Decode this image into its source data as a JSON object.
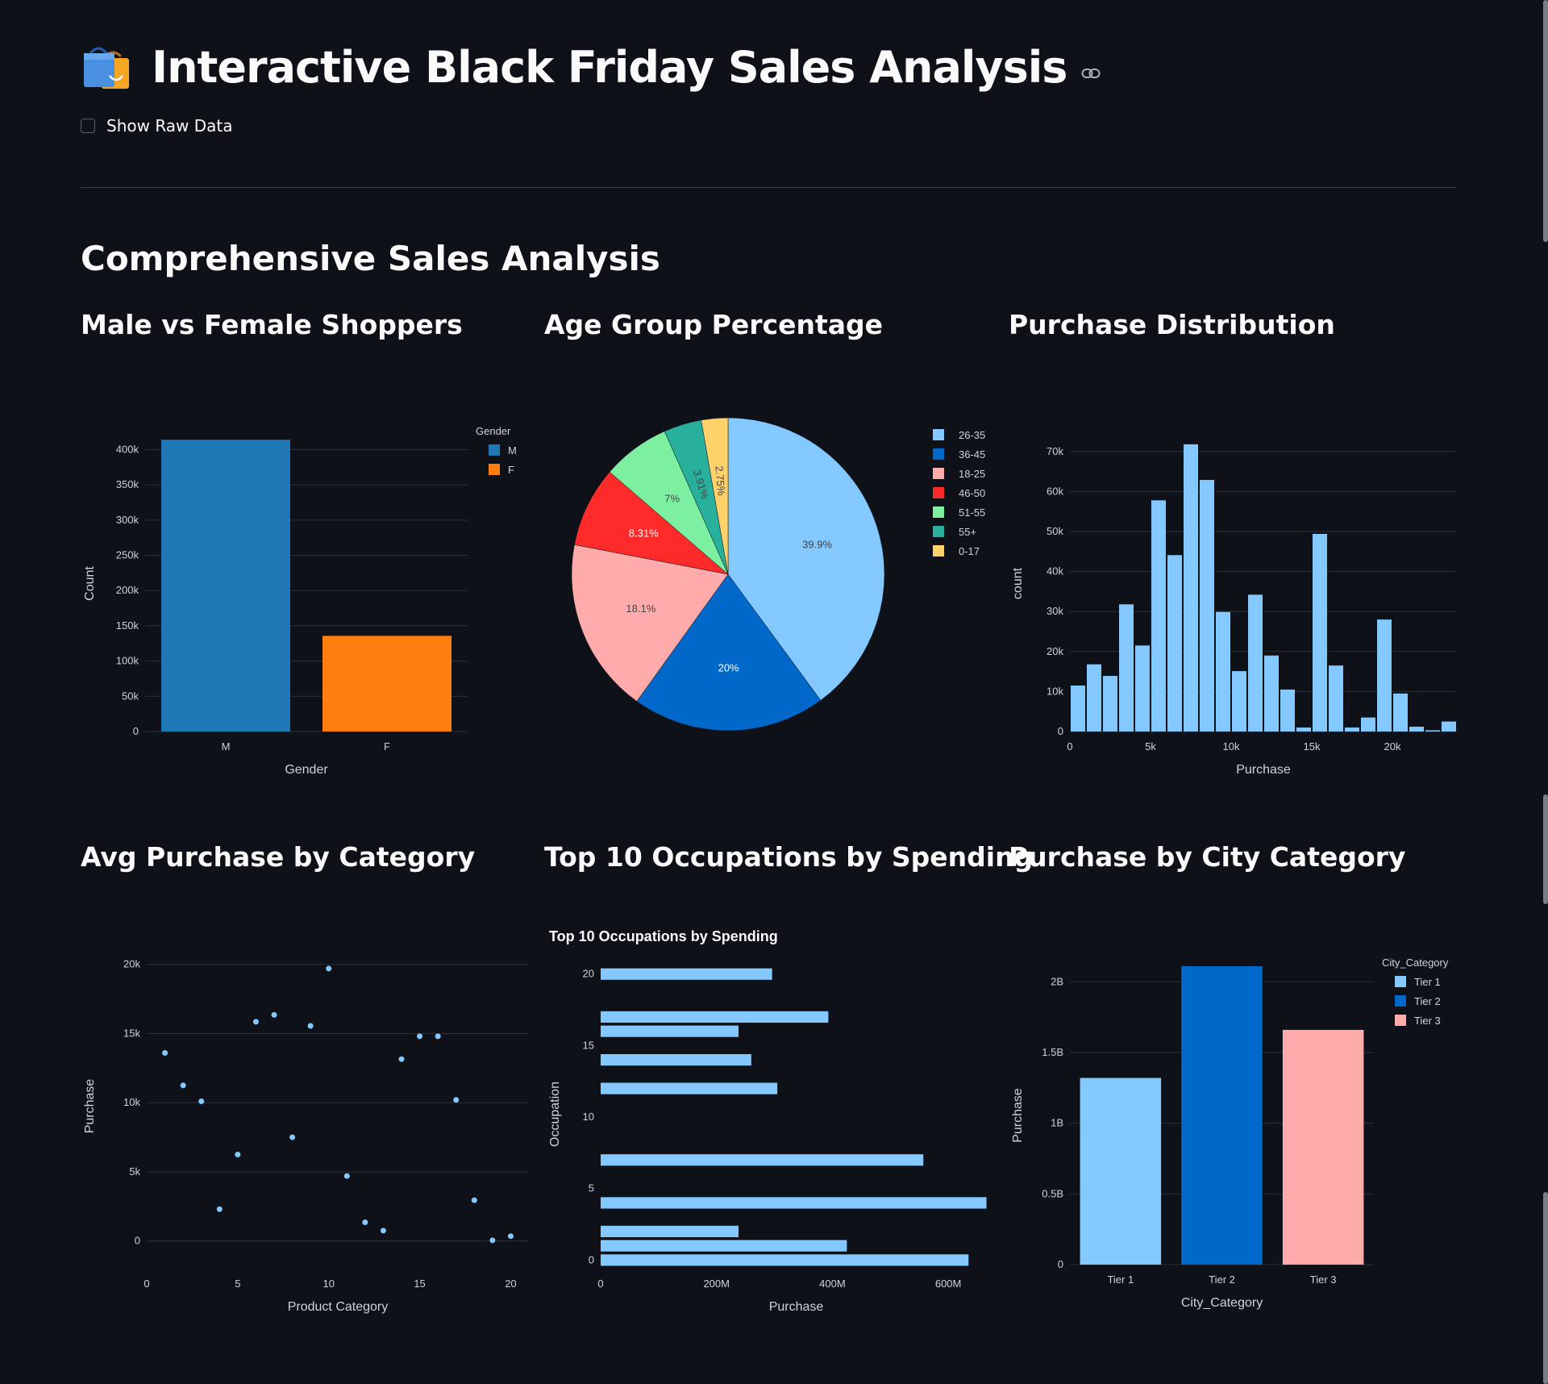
{
  "page": {
    "title": "Interactive Black Friday Sales Analysis",
    "title_icon": "shopping-bags-icon",
    "anchor_icon": "link-icon",
    "show_raw_checkbox": {
      "label": "Show Raw Data",
      "checked": false
    },
    "section_title": "Comprehensive Sales Analysis"
  },
  "colors": {
    "background": "#0e1117",
    "grid": "#2b2f38",
    "text": "#fafafa",
    "axis_text": "#d0d3da",
    "light_blue": "#83c9ff",
    "dark_blue": "#0068c9",
    "pink": "#ffabab",
    "red": "#ff2b2b",
    "green": "#7defa1",
    "teal": "#29b09d",
    "yellow": "#ffd16a",
    "plotly_blue": "#1f77b4",
    "plotly_orange": "#ff7f0e"
  },
  "chart_data": [
    {
      "id": "gender",
      "subheader": "Male vs Female Shoppers",
      "type": "bar",
      "categories": [
        "M",
        "F"
      ],
      "values": [
        414000,
        135800
      ],
      "bar_colors": [
        "#1f77b4",
        "#ff7f0e"
      ],
      "xlabel": "Gender",
      "ylabel": "Count",
      "ylim": [
        0,
        420000
      ],
      "yticks": [
        0,
        50000,
        100000,
        150000,
        200000,
        250000,
        300000,
        350000,
        400000
      ],
      "ytick_labels": [
        "0",
        "50k",
        "100k",
        "150k",
        "200k",
        "250k",
        "300k",
        "350k",
        "400k"
      ],
      "grid": true,
      "legend": {
        "title": "Gender",
        "placement": "top-right",
        "entries": [
          {
            "label": "M",
            "color": "#1f77b4"
          },
          {
            "label": "F",
            "color": "#ff7f0e"
          }
        ]
      }
    },
    {
      "id": "age",
      "subheader": "Age Group Percentage",
      "type": "pie",
      "slices": [
        {
          "label": "26-35",
          "value": 39.9,
          "text": "39.9%",
          "color": "#83c9ff",
          "text_color": "#444444"
        },
        {
          "label": "36-45",
          "value": 20.0,
          "text": "20%",
          "color": "#0068c9",
          "text_color": "#ffffff"
        },
        {
          "label": "18-25",
          "value": 18.1,
          "text": "18.1%",
          "color": "#ffabab",
          "text_color": "#444444"
        },
        {
          "label": "46-50",
          "value": 8.31,
          "text": "8.31%",
          "color": "#ff2b2b",
          "text_color": "#ffffff"
        },
        {
          "label": "51-55",
          "value": 7.0,
          "text": "7%",
          "color": "#7defa1",
          "text_color": "#444444"
        },
        {
          "label": "55+",
          "value": 3.91,
          "text": "3.91%",
          "color": "#29b09d",
          "text_color": "#444444"
        },
        {
          "label": "0-17",
          "value": 2.75,
          "text": "2.75%",
          "color": "#ffd16a",
          "text_color": "#444444"
        }
      ],
      "legend": {
        "placement": "top-right"
      }
    },
    {
      "id": "purchase_hist",
      "subheader": "Purchase Distribution",
      "type": "bar",
      "histogram": true,
      "bin_start": 0,
      "bin_width": 1000,
      "values": [
        11500,
        16800,
        13900,
        31800,
        21500,
        57800,
        44100,
        71800,
        62900,
        29900,
        15100,
        34200,
        19000,
        10500,
        1000,
        49400,
        16500,
        1000,
        3500,
        28000,
        9500,
        1200,
        300,
        2500
      ],
      "color": "#83c9ff",
      "xlabel": "Purchase",
      "ylabel": "count",
      "xlim": [
        0,
        24000
      ],
      "xticks": [
        0,
        5000,
        10000,
        15000,
        20000
      ],
      "xtick_labels": [
        "0",
        "5k",
        "10k",
        "15k",
        "20k"
      ],
      "ylim": [
        0,
        74000
      ],
      "yticks": [
        0,
        10000,
        20000,
        30000,
        40000,
        50000,
        60000,
        70000
      ],
      "ytick_labels": [
        "0",
        "10k",
        "20k",
        "30k",
        "40k",
        "50k",
        "60k",
        "70k"
      ],
      "grid": true
    },
    {
      "id": "category_scatter",
      "subheader": "Avg Purchase by Category",
      "type": "scatter",
      "x": [
        1,
        2,
        3,
        4,
        5,
        6,
        7,
        8,
        9,
        10,
        11,
        12,
        13,
        14,
        15,
        16,
        17,
        18,
        19,
        20
      ],
      "y": [
        13600,
        11250,
        10100,
        2300,
        6250,
        15850,
        16350,
        7500,
        15550,
        19700,
        4700,
        1350,
        750,
        13150,
        14800,
        14800,
        10200,
        2950,
        50,
        350
      ],
      "color": "#83c9ff",
      "xlabel": "Product Category",
      "ylabel": "Purchase",
      "xlim": [
        0,
        21
      ],
      "xticks": [
        0,
        5,
        10,
        15,
        20
      ],
      "xtick_labels": [
        "0",
        "5",
        "10",
        "15",
        "20"
      ],
      "ylim": [
        -2000,
        21500
      ],
      "yticks": [
        0,
        5000,
        10000,
        15000,
        20000
      ],
      "ytick_labels": [
        "0",
        "5k",
        "10k",
        "15k",
        "20k"
      ],
      "grid": true
    },
    {
      "id": "occupation",
      "subheader": "Top 10 Occupations by Spending",
      "title": "Top 10 Occupations by Spending",
      "type": "bar",
      "orientation": "horizontal",
      "categories": [
        0,
        1,
        2,
        4,
        7,
        12,
        14,
        16,
        17,
        20
      ],
      "values": [
        635000000,
        425000000,
        238000000,
        666000000,
        557000000,
        305000000,
        260000000,
        238000000,
        393000000,
        296000000
      ],
      "color": "#83c9ff",
      "xlabel": "Purchase",
      "ylabel": "Occupation",
      "xlim": [
        0,
        675000000
      ],
      "xticks": [
        0,
        200000000,
        400000000,
        600000000
      ],
      "xtick_labels": [
        "0",
        "200M",
        "400M",
        "600M"
      ],
      "ylim": [
        -0.6,
        21
      ],
      "yticks": [
        0,
        5,
        10,
        15,
        20
      ],
      "ytick_labels": [
        "0",
        "5",
        "10",
        "15",
        "20"
      ],
      "grid": false
    },
    {
      "id": "city",
      "subheader": "Purchase by City Category",
      "type": "bar",
      "categories": [
        "Tier 1",
        "Tier 2",
        "Tier 3"
      ],
      "values": [
        1320000000,
        2110000000,
        1660000000
      ],
      "bar_colors": [
        "#83c9ff",
        "#0068c9",
        "#ffabab"
      ],
      "xlabel": "City_Category",
      "ylabel": "Purchase",
      "ylim": [
        0,
        2110000000
      ],
      "yticks": [
        0,
        500000000,
        1000000000,
        1500000000,
        2000000000
      ],
      "ytick_labels": [
        "0",
        "0.5B",
        "1B",
        "1.5B",
        "2B"
      ],
      "grid": true,
      "legend": {
        "title": "City_Category",
        "placement": "top-right",
        "entries": [
          {
            "label": "Tier 1",
            "color": "#83c9ff"
          },
          {
            "label": "Tier 2",
            "color": "#0068c9"
          },
          {
            "label": "Tier 3",
            "color": "#ffabab"
          }
        ]
      }
    }
  ]
}
